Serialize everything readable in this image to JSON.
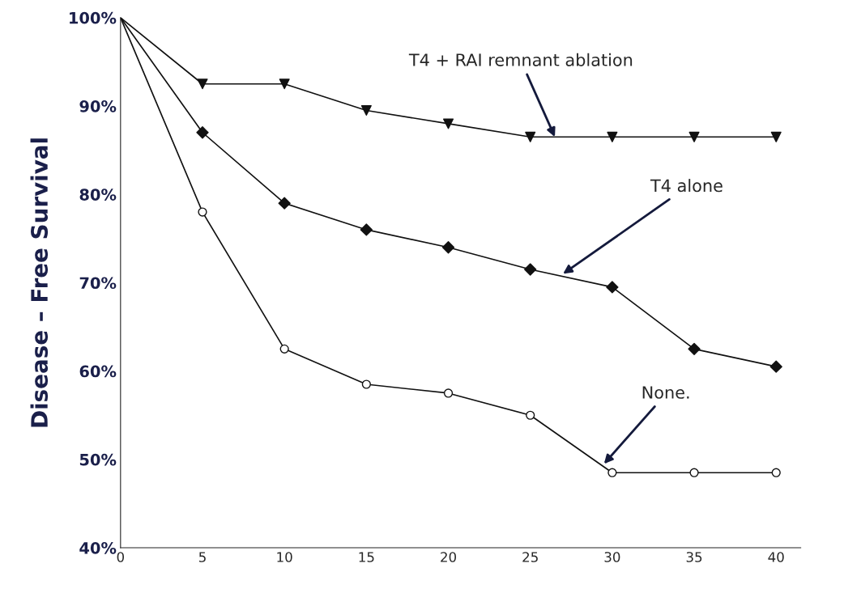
{
  "chart_data": {
    "type": "line",
    "ylabel": "Disease – Free Survival",
    "x": [
      0,
      5,
      10,
      15,
      20,
      25,
      30,
      35,
      40
    ],
    "series": [
      {
        "color": "#111111",
        "marker": "triangle",
        "values": [
          100,
          92.5,
          92.5,
          89.5,
          88,
          86.5,
          86.5,
          86.5,
          86.5
        ]
      },
      {
        "color": "#111111",
        "marker": "diamond",
        "values": [
          100,
          87,
          79,
          76,
          74,
          71.5,
          69.5,
          62.5,
          60.5
        ]
      },
      {
        "color": "#111111",
        "marker": "circle",
        "values": [
          100,
          78,
          62.5,
          58.5,
          57.5,
          55,
          48.5,
          48.5,
          48.5
        ]
      }
    ],
    "xlim": [
      0,
      41.5
    ],
    "xticks": [
      0,
      5,
      10,
      15,
      20,
      25,
      30,
      35,
      40
    ],
    "ylim": [
      40,
      100
    ],
    "yticks": [
      {
        "value": 40,
        "label": "40%"
      },
      {
        "value": 50,
        "label": "50%"
      },
      {
        "value": 60,
        "label": "60%"
      },
      {
        "value": 70,
        "label": "70%"
      },
      {
        "value": 80,
        "label": "80%"
      },
      {
        "value": 90,
        "label": "90%"
      },
      {
        "value": 100,
        "label": "100%"
      }
    ],
    "annotations": [
      {
        "text": "T4 + RAI remnant ablation",
        "x": 26.5,
        "y": 86.5
      },
      {
        "text": "T4 alone",
        "x": 27,
        "y": 71
      },
      {
        "text": "None.",
        "x": 29.5,
        "y": 49.5
      }
    ],
    "grid": false,
    "legend": false
  }
}
